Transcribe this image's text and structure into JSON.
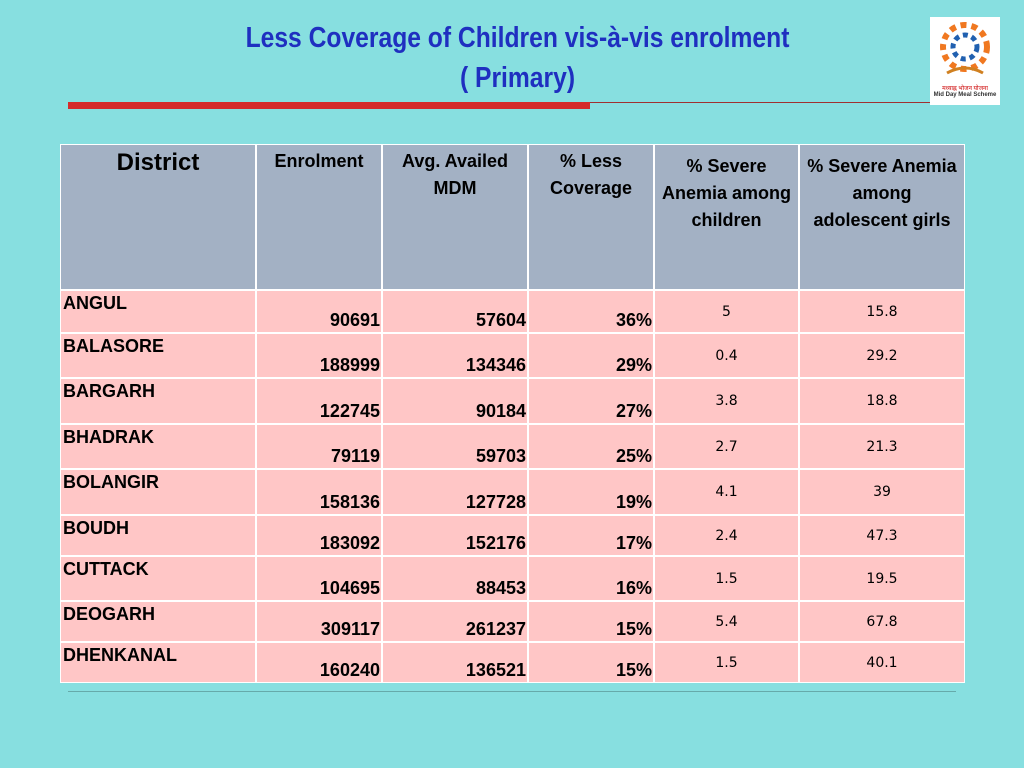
{
  "header": {
    "title_line1": "Less Coverage of Children vis-à-vis enrolment",
    "title_line2": "( Primary)",
    "logo_hindi": "मध्याह्न भोजन योजना",
    "logo_text": "Mid Day Meal Scheme"
  },
  "table": {
    "columns": [
      "District",
      "Enrolment",
      "Avg. Availed MDM",
      "% Less Coverage",
      "% Severe Anemia among children",
      "% Severe Anemia among adolescent girls"
    ],
    "rows": [
      [
        "ANGUL",
        "90691",
        "57604",
        "36%",
        "5",
        "15.8"
      ],
      [
        "BALASORE",
        "188999",
        "134346",
        "29%",
        "0.4",
        "29.2"
      ],
      [
        "BARGARH",
        "122745",
        "90184",
        "27%",
        "3.8",
        "18.8"
      ],
      [
        "BHADRAK",
        "79119",
        "59703",
        "25%",
        "2.7",
        "21.3"
      ],
      [
        "BOLANGIR",
        "158136",
        "127728",
        "19%",
        "4.1",
        "39"
      ],
      [
        "BOUDH",
        "183092",
        "152176",
        "17%",
        "2.4",
        "47.3"
      ],
      [
        "CUTTACK",
        "104695",
        "88453",
        "16%",
        "1.5",
        "19.5"
      ],
      [
        "DEOGARH",
        "309117",
        "261237",
        "15%",
        "5.4",
        "67.8"
      ],
      [
        "DHENKANAL",
        "160240",
        "136521",
        "15%",
        "1.5",
        "40.1"
      ]
    ]
  }
}
